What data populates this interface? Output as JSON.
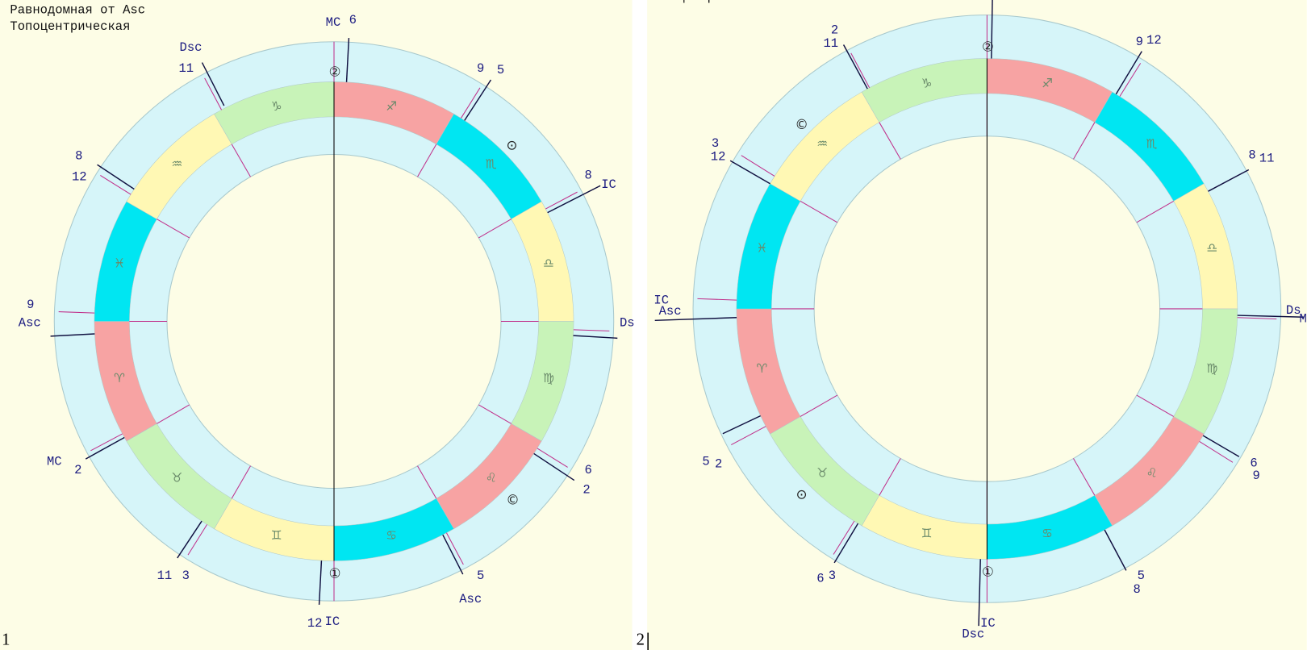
{
  "panels": [
    {
      "title_lines": [
        "Равнодомная от Asc",
        "Топоцентрическая"
      ],
      "number": "1",
      "labels": [
        "MC",
        "6",
        "Dsc",
        "11",
        "9",
        "5",
        "8",
        "IC",
        "8",
        "12",
        "9",
        "Asc",
        "Ds",
        "MC",
        "2",
        "6",
        "2",
        "11",
        "3",
        "12",
        "IC",
        "5",
        "Asc"
      ],
      "signs": [
        "♐",
        "♏",
        "♎",
        "♍",
        "♌",
        "♋",
        "♊",
        "♉",
        "♈",
        "♓",
        "♒",
        "♑"
      ],
      "planets": [
        "②",
        "⊙",
        "©",
        "①"
      ]
    },
    {
      "title_lines": [
        "Топоцентрическая"
      ],
      "number": "2",
      "labels": [
        "2",
        "11",
        "9",
        "12",
        "3",
        "12",
        "8",
        "11",
        "IC",
        "Asc",
        "Ds",
        "M",
        "5",
        "2",
        "6",
        "9",
        "6",
        "3",
        "5",
        "8",
        "Dsc",
        "IC"
      ],
      "signs": [
        "♐",
        "♏",
        "♎",
        "♍",
        "♌",
        "♋",
        "♊",
        "♉",
        "♈",
        "♓",
        "♒",
        "♑"
      ],
      "planets": [
        "②",
        "©",
        "⊙",
        "①"
      ]
    }
  ]
}
